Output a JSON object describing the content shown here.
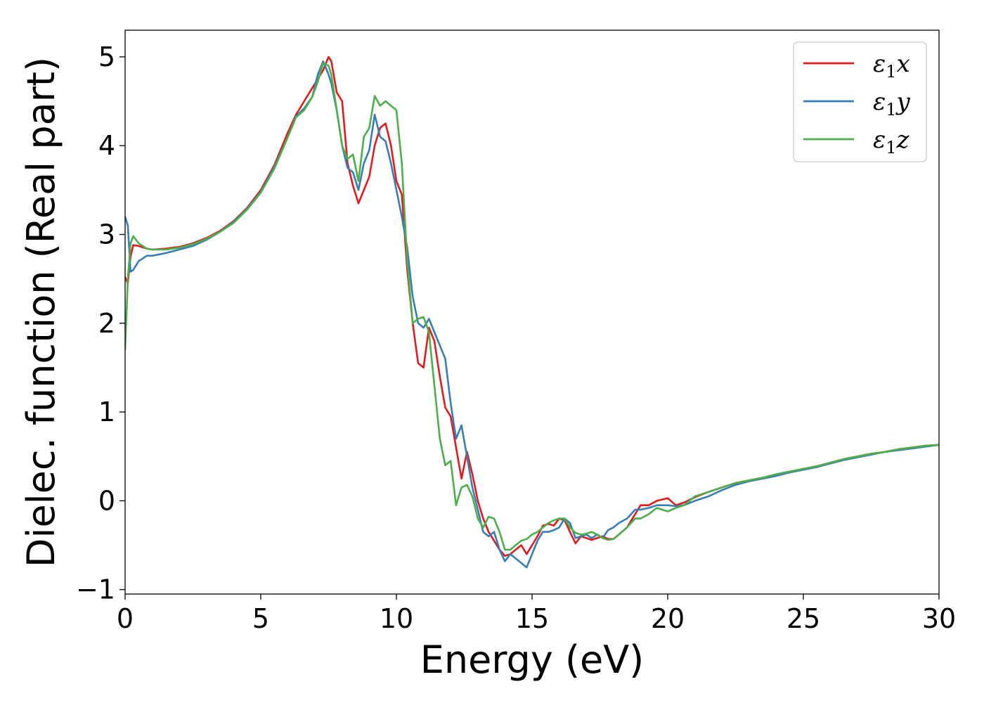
{
  "chart_data": {
    "type": "line",
    "title": "",
    "xlabel": "Energy (eV)",
    "ylabel": "Dielec. function (Real part)",
    "xlim": [
      0,
      30
    ],
    "ylim": [
      -1.05,
      5.3
    ],
    "xticks": [
      0,
      5,
      10,
      15,
      20,
      25,
      30
    ],
    "xtick_labels": [
      "0",
      "5",
      "10",
      "15",
      "20",
      "25",
      "30"
    ],
    "yticks": [
      -1,
      0,
      1,
      2,
      3,
      4,
      5
    ],
    "ytick_labels": [
      "−1",
      "0",
      "1",
      "2",
      "3",
      "4",
      "5"
    ],
    "grid": false,
    "legend": "top-right",
    "series": [
      {
        "name": "ε₁x",
        "legend_main": "ε",
        "legend_sub": "1",
        "legend_var": "x",
        "color": "#e41a1c",
        "x": [
          0.0,
          0.1,
          0.2,
          0.3,
          0.5,
          0.8,
          1.0,
          1.5,
          2.0,
          2.5,
          3.0,
          3.5,
          4.0,
          4.5,
          5.0,
          5.5,
          6.0,
          6.3,
          6.6,
          6.9,
          7.1,
          7.3,
          7.5,
          7.6,
          7.8,
          8.0,
          8.2,
          8.4,
          8.6,
          8.8,
          9.0,
          9.2,
          9.4,
          9.6,
          9.8,
          10.0,
          10.2,
          10.4,
          10.6,
          10.8,
          11.0,
          11.2,
          11.4,
          11.6,
          11.8,
          12.0,
          12.2,
          12.4,
          12.6,
          12.8,
          13.0,
          13.2,
          13.4,
          13.6,
          13.8,
          14.0,
          14.2,
          14.4,
          14.6,
          14.8,
          15.0,
          15.2,
          15.4,
          15.6,
          15.8,
          16.0,
          16.2,
          16.4,
          16.6,
          16.8,
          17.0,
          17.2,
          17.4,
          17.6,
          17.8,
          18.0,
          18.2,
          18.5,
          18.8,
          19.0,
          19.3,
          19.6,
          20.0,
          20.3,
          20.6,
          21.0,
          21.5,
          22.0,
          22.5,
          23.0,
          23.5,
          24.0,
          24.5,
          25.0,
          25.5,
          26.0,
          26.5,
          27.0,
          27.5,
          28.0,
          28.5,
          29.0,
          29.5,
          30.0
        ],
        "y": [
          2.52,
          2.45,
          2.75,
          2.88,
          2.87,
          2.84,
          2.83,
          2.84,
          2.86,
          2.9,
          2.96,
          3.04,
          3.15,
          3.3,
          3.5,
          3.78,
          4.15,
          4.35,
          4.5,
          4.65,
          4.75,
          4.85,
          5.0,
          4.95,
          4.6,
          4.5,
          3.8,
          3.55,
          3.35,
          3.5,
          3.65,
          4.0,
          4.2,
          4.25,
          4.0,
          3.6,
          3.45,
          2.6,
          2.0,
          1.55,
          1.5,
          1.95,
          1.8,
          1.4,
          1.05,
          0.95,
          0.6,
          0.25,
          0.55,
          0.3,
          0.0,
          -0.2,
          -0.35,
          -0.45,
          -0.55,
          -0.62,
          -0.6,
          -0.55,
          -0.5,
          -0.6,
          -0.5,
          -0.4,
          -0.28,
          -0.26,
          -0.28,
          -0.2,
          -0.22,
          -0.35,
          -0.48,
          -0.4,
          -0.42,
          -0.44,
          -0.42,
          -0.4,
          -0.43,
          -0.43,
          -0.38,
          -0.3,
          -0.15,
          -0.05,
          -0.05,
          0.0,
          0.03,
          -0.05,
          -0.02,
          0.04,
          0.1,
          0.15,
          0.2,
          0.23,
          0.26,
          0.29,
          0.32,
          0.36,
          0.39,
          0.43,
          0.47,
          0.5,
          0.53,
          0.55,
          0.58,
          0.6,
          0.62,
          0.63
        ]
      },
      {
        "name": "ε₁y",
        "legend_main": "ε",
        "legend_sub": "1",
        "legend_var": "y",
        "color": "#377eb8",
        "x": [
          0.0,
          0.1,
          0.2,
          0.3,
          0.5,
          0.8,
          1.0,
          1.5,
          2.0,
          2.5,
          3.0,
          3.5,
          4.0,
          4.5,
          5.0,
          5.5,
          6.0,
          6.3,
          6.6,
          6.9,
          7.1,
          7.3,
          7.5,
          7.6,
          7.8,
          8.0,
          8.2,
          8.4,
          8.6,
          8.8,
          9.0,
          9.2,
          9.4,
          9.6,
          9.8,
          10.0,
          10.2,
          10.4,
          10.6,
          10.8,
          11.0,
          11.2,
          11.4,
          11.6,
          11.8,
          12.0,
          12.2,
          12.4,
          12.6,
          12.8,
          13.0,
          13.2,
          13.4,
          13.6,
          13.8,
          14.0,
          14.2,
          14.4,
          14.6,
          14.8,
          15.0,
          15.2,
          15.4,
          15.6,
          15.8,
          16.0,
          16.2,
          16.4,
          16.6,
          16.8,
          17.0,
          17.2,
          17.4,
          17.6,
          17.8,
          18.0,
          18.2,
          18.5,
          18.8,
          19.0,
          19.3,
          19.6,
          20.0,
          20.3,
          20.6,
          21.0,
          21.5,
          22.0,
          22.5,
          23.0,
          23.5,
          24.0,
          24.5,
          25.0,
          25.5,
          26.0,
          26.5,
          27.0,
          27.5,
          28.0,
          28.5,
          29.0,
          29.5,
          30.0
        ],
        "y": [
          3.2,
          3.1,
          2.58,
          2.6,
          2.7,
          2.76,
          2.76,
          2.79,
          2.83,
          2.87,
          2.94,
          3.03,
          3.14,
          3.29,
          3.48,
          3.76,
          4.1,
          4.33,
          4.42,
          4.55,
          4.8,
          4.95,
          4.8,
          4.7,
          4.4,
          4.0,
          3.75,
          3.7,
          3.5,
          3.8,
          3.95,
          4.35,
          4.1,
          4.05,
          3.8,
          3.5,
          3.2,
          2.85,
          2.3,
          2.0,
          1.95,
          2.05,
          1.9,
          1.75,
          1.6,
          1.1,
          0.7,
          0.85,
          0.5,
          0.15,
          -0.1,
          -0.35,
          -0.4,
          -0.35,
          -0.55,
          -0.68,
          -0.6,
          -0.65,
          -0.7,
          -0.75,
          -0.6,
          -0.45,
          -0.35,
          -0.35,
          -0.33,
          -0.3,
          -0.2,
          -0.25,
          -0.42,
          -0.4,
          -0.38,
          -0.42,
          -0.38,
          -0.42,
          -0.33,
          -0.3,
          -0.25,
          -0.2,
          -0.1,
          -0.1,
          -0.08,
          -0.05,
          -0.05,
          -0.06,
          -0.05,
          0.0,
          0.05,
          0.12,
          0.18,
          0.22,
          0.25,
          0.28,
          0.32,
          0.35,
          0.38,
          0.42,
          0.46,
          0.49,
          0.52,
          0.55,
          0.57,
          0.59,
          0.61,
          0.63
        ]
      },
      {
        "name": "ε₁z",
        "legend_main": "ε",
        "legend_sub": "1",
        "legend_var": "z",
        "color": "#4daf4a",
        "x": [
          0.0,
          0.1,
          0.2,
          0.3,
          0.5,
          0.8,
          1.0,
          1.5,
          2.0,
          2.5,
          3.0,
          3.5,
          4.0,
          4.5,
          5.0,
          5.5,
          6.0,
          6.3,
          6.6,
          6.9,
          7.1,
          7.3,
          7.5,
          7.6,
          7.8,
          8.0,
          8.2,
          8.4,
          8.6,
          8.8,
          9.0,
          9.2,
          9.4,
          9.6,
          9.8,
          10.0,
          10.2,
          10.4,
          10.6,
          10.8,
          11.0,
          11.2,
          11.4,
          11.6,
          11.8,
          12.0,
          12.2,
          12.4,
          12.6,
          12.8,
          13.0,
          13.2,
          13.4,
          13.6,
          13.8,
          14.0,
          14.2,
          14.4,
          14.6,
          14.8,
          15.0,
          15.2,
          15.4,
          15.6,
          15.8,
          16.0,
          16.2,
          16.4,
          16.6,
          16.8,
          17.0,
          17.2,
          17.4,
          17.6,
          17.8,
          18.0,
          18.2,
          18.5,
          18.8,
          19.0,
          19.3,
          19.6,
          20.0,
          20.3,
          20.6,
          21.0,
          21.5,
          22.0,
          22.5,
          23.0,
          23.5,
          24.0,
          24.5,
          25.0,
          25.5,
          26.0,
          26.5,
          27.0,
          27.5,
          28.0,
          28.5,
          29.0,
          29.5,
          30.0
        ],
        "y": [
          1.7,
          2.5,
          2.9,
          2.98,
          2.9,
          2.84,
          2.83,
          2.83,
          2.85,
          2.89,
          2.95,
          3.03,
          3.13,
          3.28,
          3.47,
          3.74,
          4.1,
          4.32,
          4.4,
          4.55,
          4.72,
          4.93,
          4.9,
          4.8,
          4.4,
          4.0,
          3.85,
          3.9,
          3.6,
          4.1,
          4.2,
          4.56,
          4.45,
          4.5,
          4.45,
          4.4,
          3.8,
          2.7,
          2.0,
          2.05,
          2.07,
          1.9,
          1.3,
          0.7,
          0.4,
          0.45,
          -0.05,
          0.15,
          0.18,
          0.05,
          -0.2,
          -0.3,
          -0.18,
          -0.2,
          -0.35,
          -0.55,
          -0.55,
          -0.5,
          -0.45,
          -0.43,
          -0.38,
          -0.35,
          -0.3,
          -0.25,
          -0.22,
          -0.2,
          -0.2,
          -0.3,
          -0.36,
          -0.38,
          -0.37,
          -0.35,
          -0.38,
          -0.42,
          -0.44,
          -0.43,
          -0.38,
          -0.3,
          -0.2,
          -0.2,
          -0.15,
          -0.08,
          -0.12,
          -0.08,
          -0.05,
          0.05,
          0.1,
          0.15,
          0.2,
          0.23,
          0.26,
          0.3,
          0.33,
          0.36,
          0.39,
          0.43,
          0.47,
          0.5,
          0.53,
          0.55,
          0.58,
          0.6,
          0.62,
          0.63
        ]
      }
    ]
  }
}
